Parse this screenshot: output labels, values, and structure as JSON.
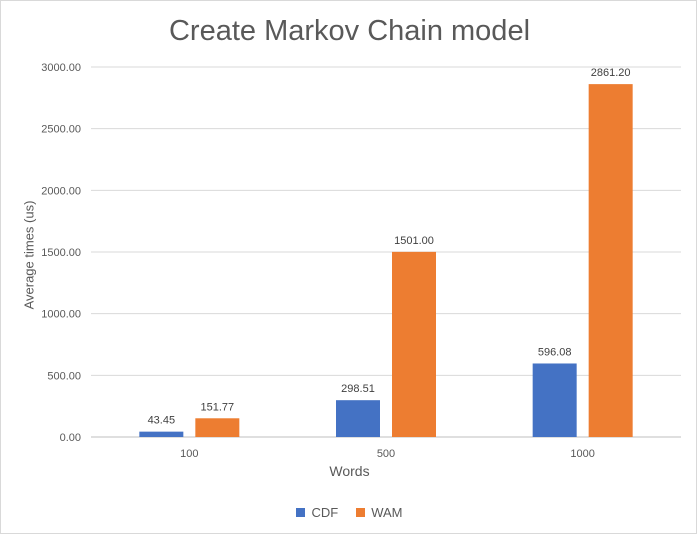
{
  "chart_data": {
    "type": "bar",
    "title": "Create Markov Chain model",
    "xlabel": "Words",
    "ylabel": "Average times (us)",
    "categories": [
      "100",
      "500",
      "1000"
    ],
    "ylim": [
      0,
      3000
    ],
    "yticks": [
      "0.00",
      "500.00",
      "1000.00",
      "1500.00",
      "2000.00",
      "2500.00",
      "3000.00"
    ],
    "grid": true,
    "legend": "bottom",
    "series": [
      {
        "name": "CDF",
        "color": "#4472c4",
        "values": [
          43.45,
          298.51,
          596.08
        ],
        "labels": [
          "43.45",
          "298.51",
          "596.08"
        ]
      },
      {
        "name": "WAM",
        "color": "#ed7d31",
        "values": [
          151.77,
          1501.0,
          2861.2
        ],
        "labels": [
          "151.77",
          "1501.00",
          "2861.20"
        ]
      }
    ]
  }
}
